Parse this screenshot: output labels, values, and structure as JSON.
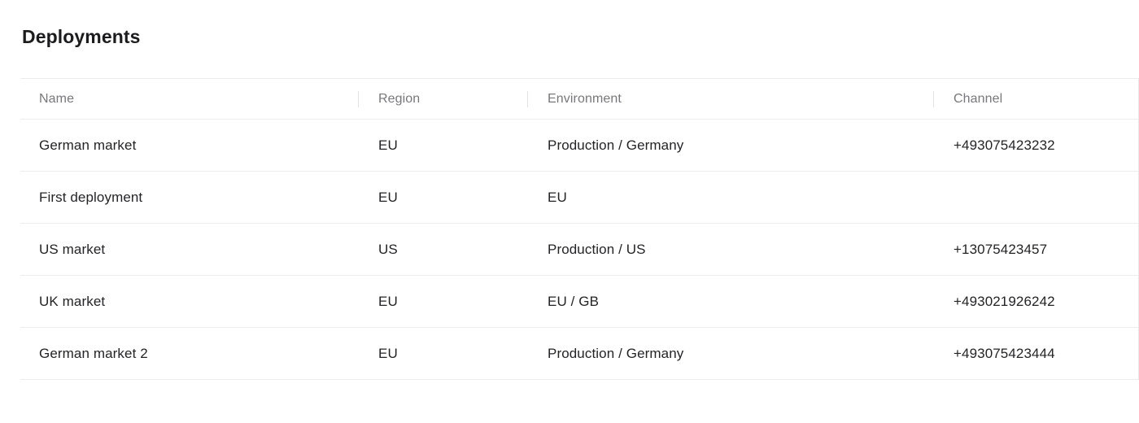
{
  "page": {
    "title": "Deployments"
  },
  "table": {
    "columns": [
      {
        "key": "name",
        "label": "Name"
      },
      {
        "key": "region",
        "label": "Region"
      },
      {
        "key": "environment",
        "label": "Environment"
      },
      {
        "key": "channel",
        "label": "Channel"
      }
    ],
    "rows": [
      {
        "name": "German market",
        "region": "EU",
        "environment": "Production / Germany",
        "channel": "+493075423232"
      },
      {
        "name": "First deployment",
        "region": "EU",
        "environment": "EU",
        "channel": ""
      },
      {
        "name": "US market",
        "region": "US",
        "environment": "Production / US",
        "channel": "+13075423457"
      },
      {
        "name": "UK market",
        "region": "EU",
        "environment": "EU / GB",
        "channel": "+493021926242"
      },
      {
        "name": "German market 2",
        "region": "EU",
        "environment": "Production / Germany",
        "channel": "+493075423444"
      }
    ]
  },
  "colors": {
    "title_color": "#1c1c1e",
    "header_text": "#77777c",
    "cell_text": "#242427",
    "row_divider": "#ececec",
    "column_divider": "#e2e2e2",
    "background": "#ffffff"
  }
}
